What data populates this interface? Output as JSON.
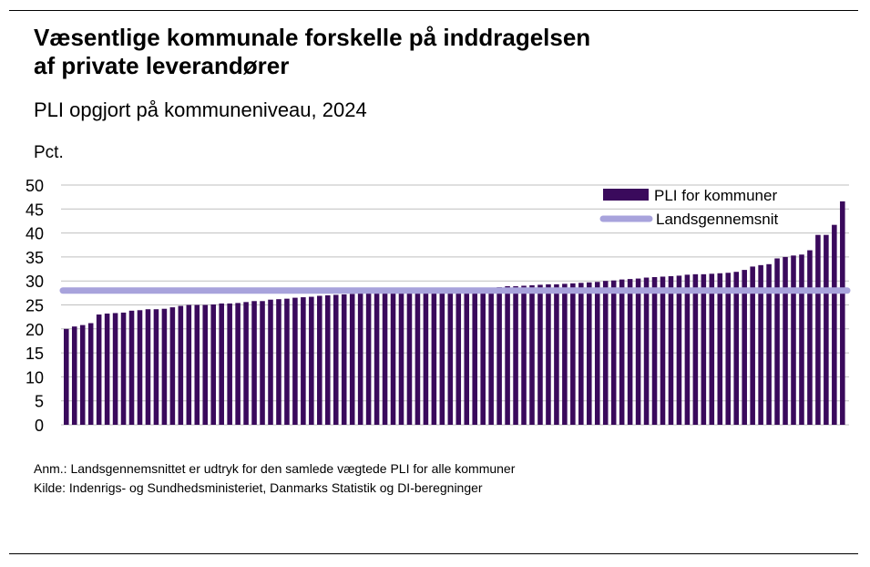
{
  "title": "Væsentlige kommunale forskelle på inddragelsen af private leverandører",
  "title_lines": [
    "Væsentlige kommunale forskelle på inddragelsen",
    "af private leverandører"
  ],
  "subtitle": "PLI opgjort på kommuneniveau, 2024",
  "notes": {
    "anm": "Anm.: Landsgennemsnittet er udtryk for den samlede vægtede PLI for alle kommuner",
    "kilde": "Kilde: Indenrigs- og Sundhedsministeriet, Danmarks Statistik og DI-beregninger"
  },
  "colors": {
    "bars": "#3a0a5c",
    "average_line": "#a8a3dc",
    "grid": "#bfbfbf"
  },
  "chart_data": {
    "type": "bar",
    "title": "Væsentlige kommunale forskelle på inddragelsen af private leverandører",
    "subtitle": "PLI opgjort på kommuneniveau, 2024",
    "xlabel": "",
    "ylabel": "Pct.",
    "ylim": [
      0,
      50
    ],
    "yticks": [
      0,
      5,
      10,
      15,
      20,
      25,
      30,
      35,
      40,
      45,
      50
    ],
    "grid": true,
    "legend_position": "top-right",
    "legend": [
      "PLI for kommuner",
      "Landsgennemsnit"
    ],
    "series": [
      {
        "name": "PLI for kommuner",
        "type": "bar",
        "values": [
          20.0,
          20.5,
          20.8,
          21.2,
          23.0,
          23.2,
          23.3,
          23.4,
          23.8,
          23.9,
          24.1,
          24.1,
          24.2,
          24.5,
          24.8,
          25.0,
          25.0,
          25.0,
          25.1,
          25.3,
          25.3,
          25.4,
          25.6,
          25.8,
          25.8,
          26.1,
          26.2,
          26.3,
          26.5,
          26.6,
          26.7,
          26.9,
          27.0,
          27.1,
          27.2,
          27.3,
          27.4,
          27.5,
          27.6,
          27.6,
          27.7,
          27.7,
          27.8,
          27.8,
          27.9,
          27.9,
          28.0,
          28.0,
          28.1,
          28.1,
          28.2,
          28.3,
          28.6,
          28.7,
          28.9,
          28.9,
          29.0,
          29.1,
          29.2,
          29.3,
          29.3,
          29.4,
          29.5,
          29.6,
          29.7,
          29.8,
          30.0,
          30.1,
          30.3,
          30.4,
          30.5,
          30.7,
          30.8,
          30.9,
          31.0,
          31.1,
          31.3,
          31.4,
          31.4,
          31.5,
          31.6,
          31.7,
          31.9,
          32.3,
          33.0,
          33.3,
          33.5,
          34.7,
          35.0,
          35.3,
          35.5,
          36.4,
          39.6,
          39.6,
          41.7,
          46.6
        ]
      },
      {
        "name": "Landsgennemsnit",
        "type": "line",
        "value": 28.0
      }
    ]
  }
}
